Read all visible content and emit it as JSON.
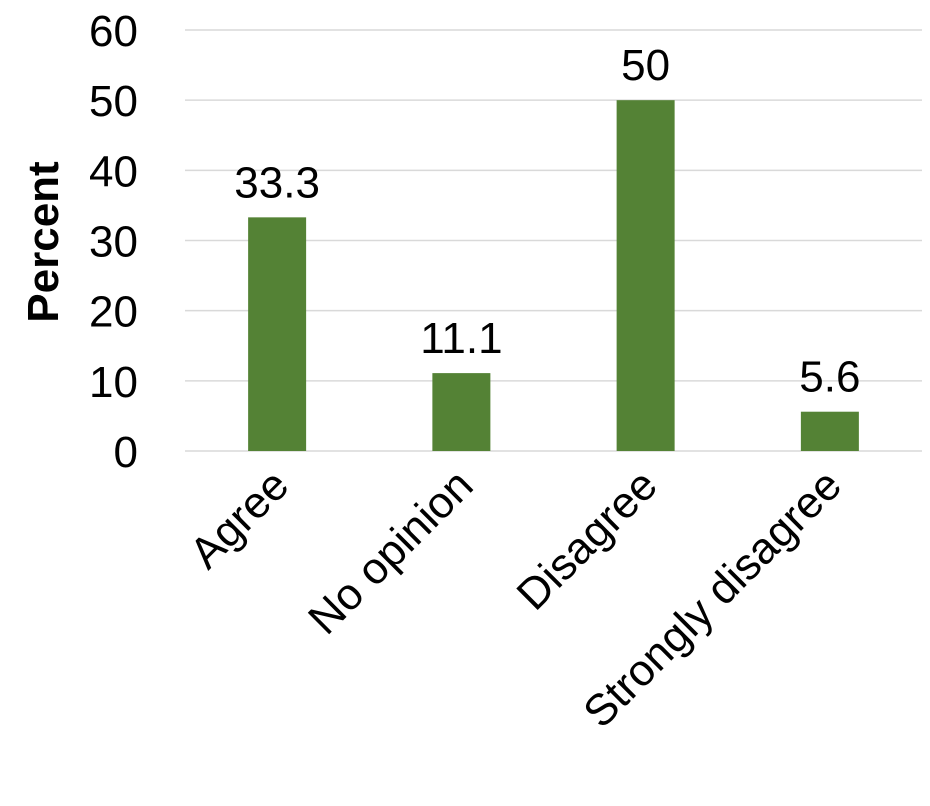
{
  "chart_data": {
    "type": "bar",
    "title": "",
    "xlabel": "",
    "ylabel": "Percent",
    "categories": [
      "Agree",
      "No opinion",
      "Disagree",
      "Strongly disagree"
    ],
    "values": [
      33.3,
      11.1,
      50,
      5.6
    ],
    "data_labels": [
      "33.3",
      "11.1",
      "50",
      "5.6"
    ],
    "ylim": [
      0,
      60
    ],
    "yticks": [
      0,
      10,
      20,
      30,
      40,
      50,
      60
    ],
    "grid": true,
    "legend": "none",
    "bar_color": "#548235",
    "grid_color": "#d9d9d9"
  }
}
